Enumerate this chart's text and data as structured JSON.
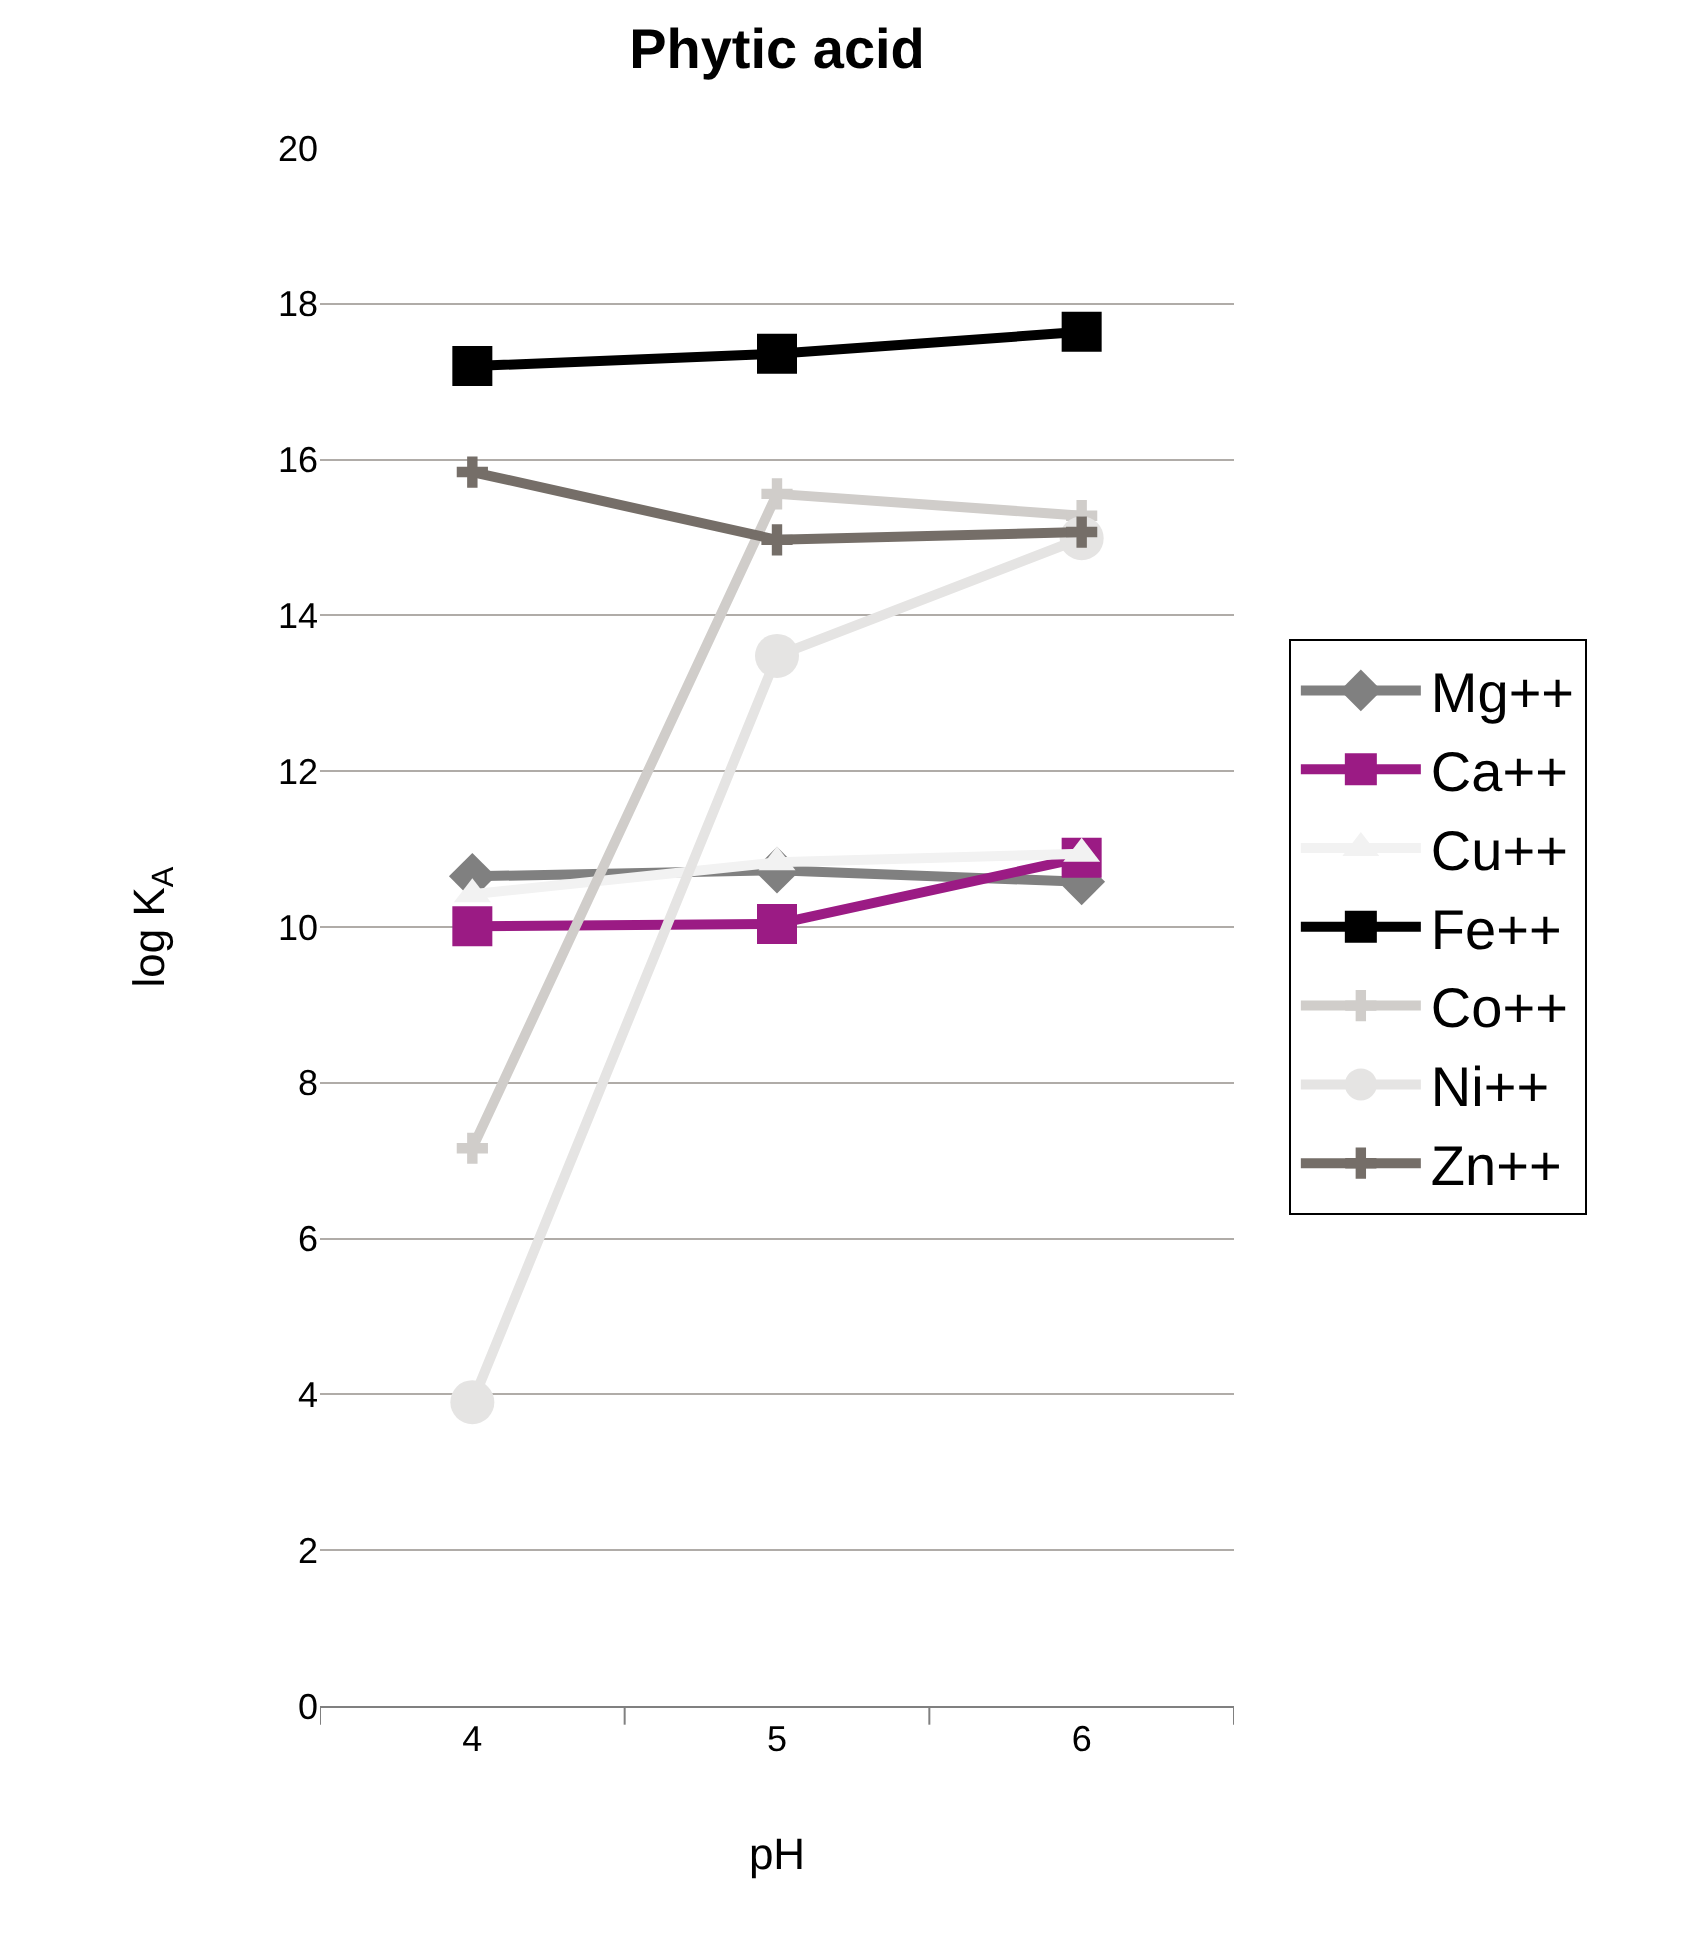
{
  "chart_data": {
    "type": "line",
    "title": "Phytic acid",
    "xlabel": "pH",
    "ylabel": "log K$_{A}$",
    "categories": [
      "4",
      "5",
      "6"
    ],
    "ylim": [
      0,
      20
    ],
    "yticks": [
      0,
      2,
      4,
      6,
      8,
      10,
      12,
      14,
      16,
      18,
      20
    ],
    "grid": "y",
    "legend": "right",
    "line_style": "solid",
    "series": [
      {
        "name": "Mg++",
        "color": "#808080",
        "marker": "diamond",
        "values": [
          10.65,
          10.73,
          10.58
        ]
      },
      {
        "name": "Ca++",
        "color": "#9b1b84",
        "marker": "square",
        "values": [
          10.01,
          10.04,
          10.89
        ]
      },
      {
        "name": "Cu++",
        "color": "#f2f2f2",
        "marker": "triangle",
        "values": [
          10.42,
          10.83,
          10.94
        ]
      },
      {
        "name": "Fe++",
        "color": "#000000",
        "marker": "square",
        "values": [
          17.2,
          17.36,
          17.64
        ]
      },
      {
        "name": "Co++",
        "color": "#d0cdca",
        "marker": "cross",
        "values": [
          7.16,
          15.56,
          15.28
        ]
      },
      {
        "name": "Ni++",
        "color": "#e5e4e3",
        "marker": "circle",
        "values": [
          3.9,
          13.48,
          14.99
        ]
      },
      {
        "name": "Zn++",
        "color": "#756e68",
        "marker": "cross",
        "values": [
          15.84,
          14.97,
          15.07
        ]
      }
    ]
  }
}
